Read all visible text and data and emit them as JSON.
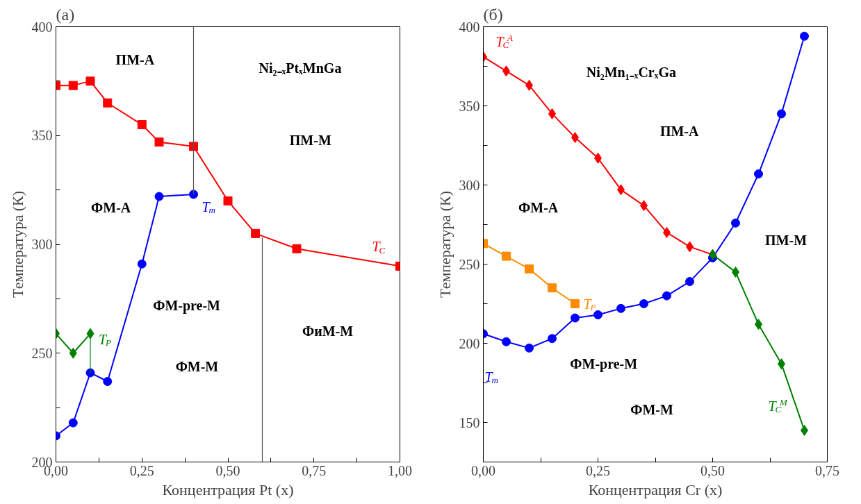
{
  "chart_data": [
    {
      "type": "line",
      "title": "(a)",
      "xlabel": "Концентрация Pt (x)",
      "ylabel": "Температура (К)",
      "xlim": [
        0,
        1
      ],
      "ylim": [
        200,
        400
      ],
      "xticks": [
        {
          "value": 0,
          "label": "0,00"
        },
        {
          "value": 0.125,
          "label": null
        },
        {
          "value": 0.25,
          "label": "0,25"
        },
        {
          "value": 0.375,
          "label": null
        },
        {
          "value": 0.5,
          "label": "0,50"
        },
        {
          "value": 0.625,
          "label": null
        },
        {
          "value": 0.75,
          "label": "0,75"
        },
        {
          "value": 0.875,
          "label": null
        },
        {
          "value": 1,
          "label": "1,00"
        }
      ],
      "yticks": [
        200,
        {
          "value": 225,
          "label": null
        },
        250,
        {
          "value": 275,
          "label": null
        },
        300,
        {
          "value": 325,
          "label": null
        },
        350,
        {
          "value": 375,
          "label": null
        },
        400
      ],
      "grid": false,
      "series": [
        {
          "name": "T$_{C}$",
          "color": "#ff0000",
          "marker": "square",
          "x": [
            0,
            0.05,
            0.1,
            0.15,
            0.25,
            0.3,
            0.4,
            0.5,
            0.58,
            0.7,
            1.0
          ],
          "values": [
            373,
            373,
            375,
            365,
            355,
            347,
            345,
            320,
            305,
            298,
            290
          ]
        },
        {
          "name": "T$_{m}$",
          "color": "#0000ff",
          "marker": "circle",
          "x": [
            0,
            0.05,
            0.1,
            0.15,
            0.25,
            0.3,
            0.4
          ],
          "values": [
            212,
            218,
            241,
            237,
            291,
            322,
            323
          ]
        },
        {
          "name": "T$_{P}$",
          "color": "#008000",
          "marker": "diamond",
          "x": [
            0,
            0.05,
            0.1
          ],
          "values": [
            259,
            250,
            259
          ]
        },
        {
          "color": "#008000",
          "marker": "none",
          "x": [
            0.1,
            0.1
          ],
          "values": [
            259,
            241
          ]
        },
        {
          "color": "#555555",
          "marker": "none",
          "x": [
            0.4,
            0.4
          ],
          "values": [
            400,
            323
          ]
        },
        {
          "color": "#555555",
          "marker": "none",
          "x": [
            0.6,
            0.6
          ],
          "values": [
            303,
            200
          ]
        }
      ],
      "annotations": [
        "ПМ-А",
        "Ni₂₋ₓPtₓMnGa",
        "ПМ-М",
        "ФМ-А",
        "ФМ-pre-M",
        "ФМ-М",
        "ФиМ-М"
      ]
    },
    {
      "type": "line",
      "title": "(б)",
      "xlabel": "Концентрация Cr (x)",
      "ylabel": "Температура (К)",
      "xlim": [
        0,
        0.75
      ],
      "ylim": [
        125,
        400
      ],
      "xticks": [
        {
          "value": 0,
          "label": "0,00"
        },
        {
          "value": 0.125,
          "label": null
        },
        {
          "value": 0.25,
          "label": "0,25"
        },
        {
          "value": 0.375,
          "label": null
        },
        {
          "value": 0.5,
          "label": "0,50"
        },
        {
          "value": 0.625,
          "label": null
        },
        {
          "value": 0.75,
          "label": "0,75"
        }
      ],
      "yticks": [
        150,
        {
          "value": 175,
          "label": null
        },
        200,
        {
          "value": 225,
          "label": null
        },
        250,
        {
          "value": 275,
          "label": null
        },
        300,
        {
          "value": 325,
          "label": null
        },
        350,
        {
          "value": 375,
          "label": null
        },
        400
      ],
      "grid": false,
      "series": [
        {
          "name": "T$_{C}$$^{A}$",
          "color": "#ff0000",
          "marker": "diamond",
          "x": [
            0,
            0.05,
            0.1,
            0.15,
            0.2,
            0.25,
            0.3,
            0.35,
            0.4,
            0.45,
            0.5
          ],
          "values": [
            381,
            372,
            363,
            345,
            330,
            317,
            297,
            287,
            270,
            261,
            256
          ]
        },
        {
          "name": "T$_{P}$",
          "color": "#ff8c00",
          "marker": "square",
          "x": [
            0,
            0.05,
            0.1,
            0.15,
            0.2
          ],
          "values": [
            263,
            255,
            247,
            235,
            225
          ]
        },
        {
          "name": "T$_{m}$",
          "color": "#0000ff",
          "marker": "circle",
          "x": [
            0,
            0.05,
            0.1,
            0.15,
            0.2,
            0.25,
            0.3,
            0.35,
            0.4,
            0.45,
            0.5,
            0.55,
            0.6,
            0.65,
            0.7
          ],
          "values": [
            206,
            201,
            197,
            203,
            216,
            218,
            222,
            225,
            230,
            239,
            254,
            276,
            307,
            345,
            394
          ]
        },
        {
          "name": "T$_{C}$$^{M}$",
          "color": "#008000",
          "marker": "diamond",
          "x": [
            0.5,
            0.55,
            0.6,
            0.65,
            0.7
          ],
          "values": [
            256,
            245,
            212,
            187,
            145
          ]
        }
      ],
      "annotations": [
        "Ni₂Mn₁₋ₓCrₓGa",
        "ПМ-А",
        "ФМ-А",
        "ПМ-М",
        "ФМ-pre-M",
        "ФМ-М"
      ]
    }
  ]
}
